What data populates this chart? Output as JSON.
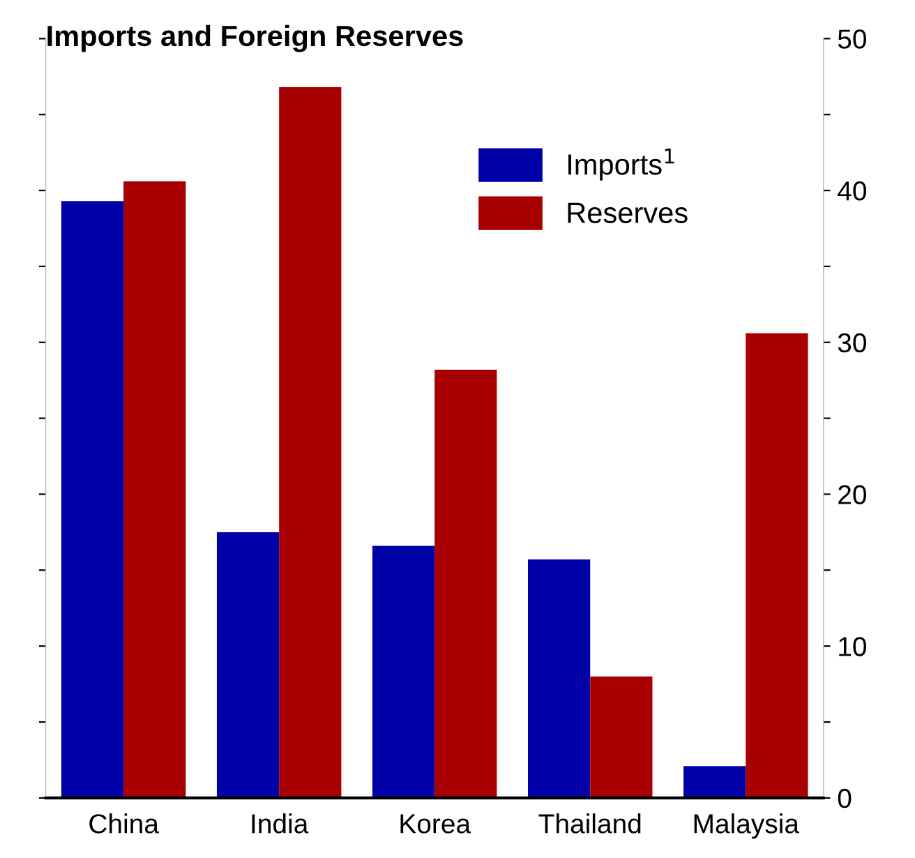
{
  "chart_data": {
    "type": "bar",
    "title": "Imports and Foreign Reserves",
    "categories": [
      "China",
      "India",
      "Korea",
      "Thailand",
      "Malaysia"
    ],
    "series": [
      {
        "name": "Imports$^{1}$",
        "color": "#0000a8",
        "values": [
          39.3,
          17.5,
          16.6,
          15.7,
          2.1
        ]
      },
      {
        "name": "Reserves",
        "color": "#a80000",
        "values": [
          40.6,
          46.8,
          28.2,
          8.0,
          30.6
        ]
      }
    ],
    "ylim": [
      0,
      50
    ],
    "yticks": [
      0,
      {
        "value": 5,
        "label": null
      },
      10,
      {
        "value": 15,
        "label": null
      },
      20,
      {
        "value": 25,
        "label": null
      },
      30,
      {
        "value": 35,
        "label": null
      },
      40,
      {
        "value": 45,
        "label": null
      },
      50
    ],
    "legend": "top right",
    "grid": false
  }
}
